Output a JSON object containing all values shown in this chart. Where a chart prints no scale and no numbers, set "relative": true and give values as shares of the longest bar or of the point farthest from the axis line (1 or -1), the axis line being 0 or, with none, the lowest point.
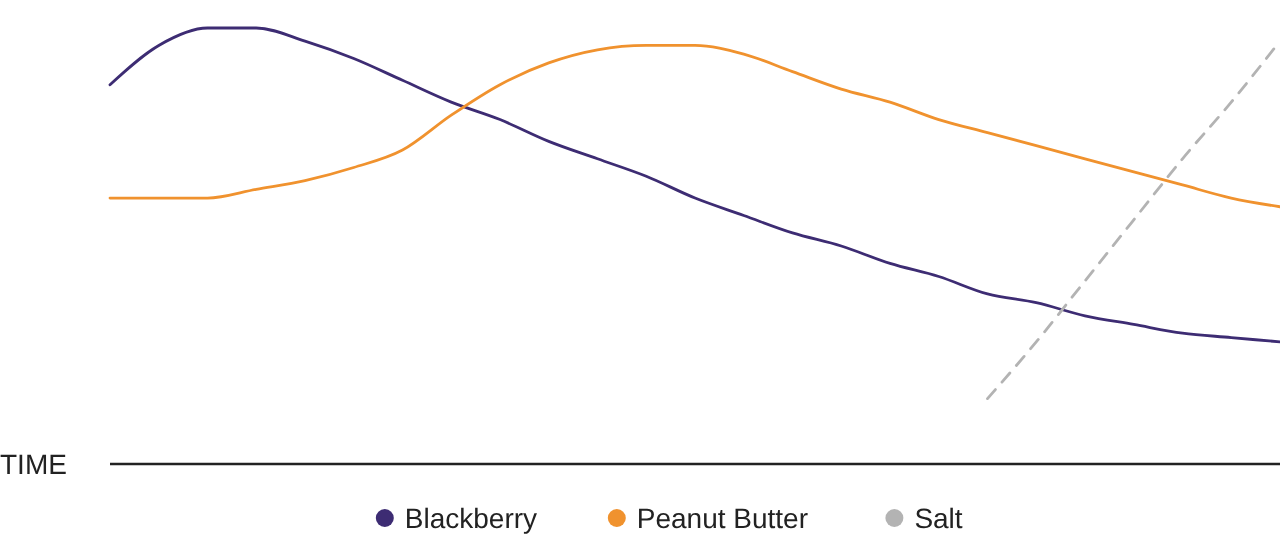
{
  "chart_data": {
    "type": "line",
    "relative": true,
    "xlabel": "TIME",
    "legend": "bottom",
    "grid": false,
    "marker": "none",
    "categories": [
      null,
      null,
      null,
      null,
      null,
      null,
      null,
      null,
      null,
      null,
      null,
      null,
      null,
      null,
      null,
      null,
      null,
      null,
      null,
      null,
      null,
      null,
      null,
      null,
      null
    ],
    "series": [
      {
        "name": "Blackberry",
        "color": "#3d2c73",
        "line_style": "solid",
        "values": [
          0.87,
          0.96,
          1.0,
          1.0,
          0.97,
          0.93,
          0.88,
          0.83,
          0.79,
          0.74,
          0.7,
          0.66,
          0.61,
          0.57,
          0.53,
          0.5,
          0.46,
          0.43,
          0.39,
          0.37,
          0.34,
          0.32,
          0.3,
          0.29,
          0.28
        ]
      },
      {
        "name": "Peanut Butter",
        "color": "#f0922e",
        "line_style": "solid",
        "values": [
          0.61,
          0.61,
          0.61,
          0.63,
          0.65,
          0.68,
          0.72,
          0.8,
          0.87,
          0.92,
          0.95,
          0.96,
          0.96,
          0.94,
          0.9,
          0.86,
          0.83,
          0.79,
          0.76,
          0.73,
          0.7,
          0.67,
          0.64,
          0.61,
          0.59
        ]
      },
      {
        "name": "Salt",
        "color": "#b3b3b3",
        "line_style": "dashed",
        "values": [
          null,
          null,
          null,
          null,
          null,
          null,
          null,
          null,
          null,
          null,
          null,
          null,
          null,
          null,
          null,
          null,
          null,
          null,
          0.15,
          0.28,
          0.42,
          0.56,
          0.7,
          0.83,
          0.97
        ]
      }
    ]
  }
}
